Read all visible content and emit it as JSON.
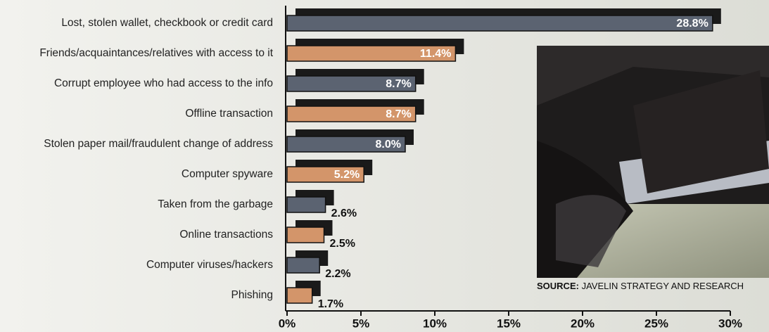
{
  "chart_data": {
    "type": "bar",
    "orientation": "horizontal",
    "categories": [
      "Lost, stolen wallet, checkbook or credit card",
      "Friends/acquaintances/relatives with access to it",
      "Corrupt employee who had access to the info",
      "Offline transaction",
      "Stolen paper mail/fraudulent change of address",
      "Computer spyware",
      "Taken from the garbage",
      "Online transactions",
      "Computer viruses/hackers",
      "Phishing"
    ],
    "values": [
      28.8,
      11.4,
      8.7,
      8.7,
      8.0,
      5.2,
      2.6,
      2.5,
      2.2,
      1.7
    ],
    "value_labels": [
      "28.8%",
      "11.4%",
      "8.7%",
      "8.7%",
      "8.0%",
      "5.2%",
      "2.6%",
      "2.5%",
      "2.2%",
      "1.7%"
    ],
    "colors": [
      "#5b6371",
      "#d3956a"
    ],
    "xlim": [
      0,
      30
    ],
    "xticks": [
      {
        "value": 0,
        "label": "0%"
      },
      {
        "value": 5,
        "label": "5%"
      },
      {
        "value": 10,
        "label": "10%"
      },
      {
        "value": 15,
        "label": "15%"
      },
      {
        "value": 20,
        "label": "20%"
      },
      {
        "value": 25,
        "label": "25%"
      },
      {
        "value": 30,
        "label": "30%"
      }
    ],
    "source_label": "SOURCE:",
    "source": "JAVELIN STRATEGY AND RESEARCH"
  }
}
